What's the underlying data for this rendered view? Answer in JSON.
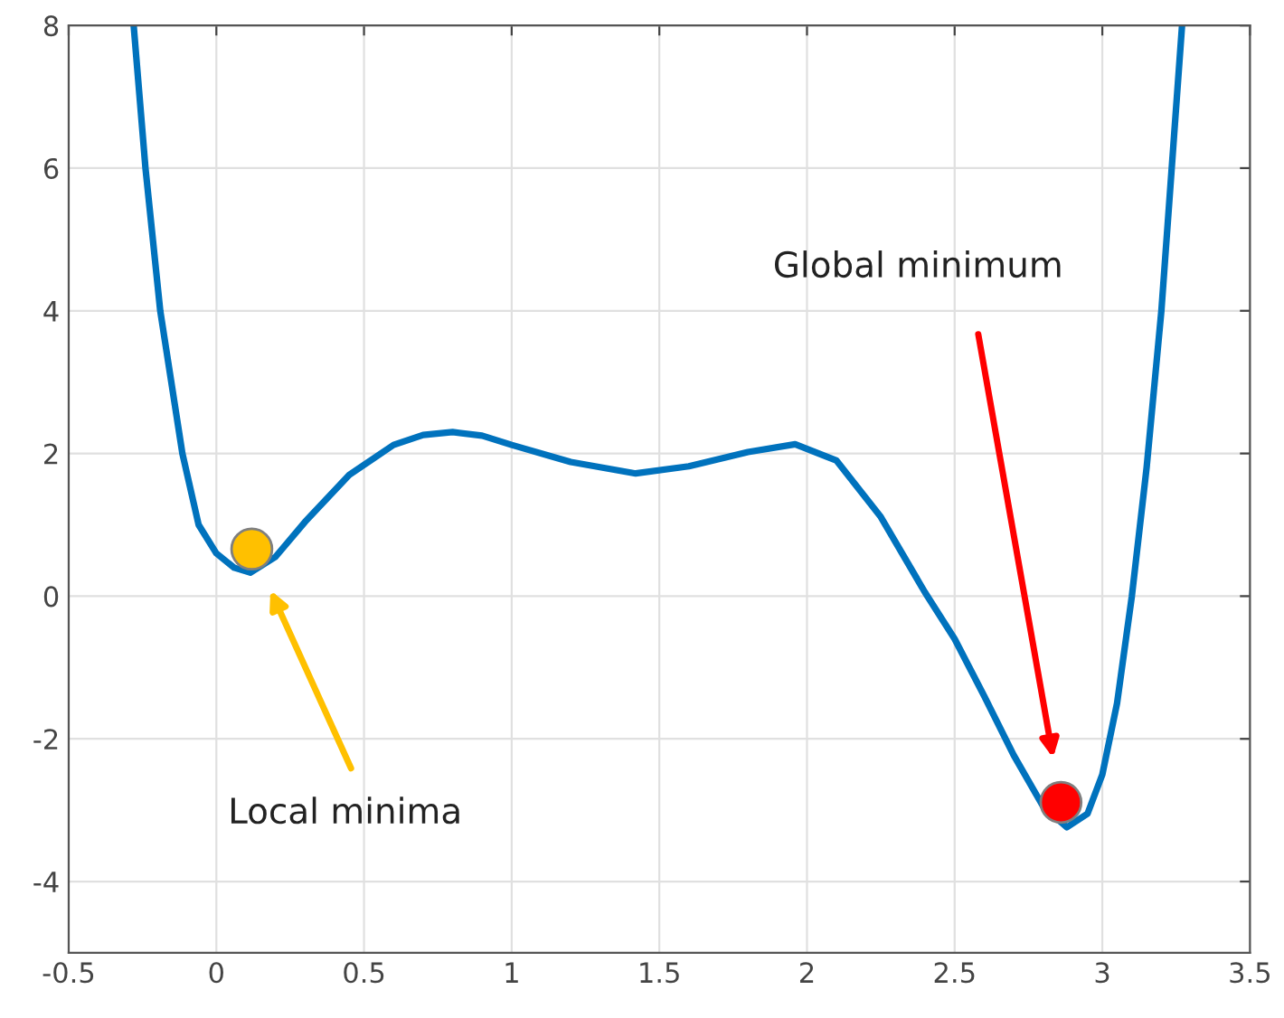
{
  "chart_data": {
    "type": "line",
    "xlim": [
      -0.5,
      3.5
    ],
    "xticks": [
      -0.5,
      0,
      0.5,
      1,
      1.5,
      2,
      2.5,
      3,
      3.5
    ],
    "ylim": [
      -5,
      8
    ],
    "yticks": [
      -4,
      -2,
      0,
      2,
      4,
      6,
      8
    ],
    "grid": true,
    "series": [
      {
        "color": "#0072bd",
        "x": [
          -0.28,
          -0.24,
          -0.19,
          -0.115,
          -0.06,
          0.0,
          0.06,
          0.115,
          0.2,
          0.3,
          0.45,
          0.6,
          0.7,
          0.8,
          0.9,
          1.0,
          1.2,
          1.42,
          1.6,
          1.8,
          1.96,
          2.1,
          2.25,
          2.4,
          2.5,
          2.6,
          2.7,
          2.8,
          2.88,
          2.95,
          3.0,
          3.05,
          3.1,
          3.15,
          3.2,
          3.27
        ],
        "values": [
          8,
          6,
          4,
          2,
          1,
          0.6,
          0.4,
          0.33,
          0.55,
          1.04,
          1.7,
          2.12,
          2.26,
          2.3,
          2.25,
          2.12,
          1.88,
          1.72,
          1.82,
          2.02,
          2.13,
          1.9,
          1.11,
          0.05,
          -0.6,
          -1.4,
          -2.23,
          -2.95,
          -3.24,
          -3.05,
          -2.5,
          -1.5,
          0,
          1.8,
          4,
          8
        ]
      },
      {
        "type": "scatter",
        "color": "#ffc000",
        "x": [
          0.12
        ],
        "values": [
          0.66
        ]
      },
      {
        "type": "scatter",
        "color": "#ff0000",
        "x": [
          2.86
        ],
        "values": [
          -2.89
        ]
      }
    ],
    "annotations": [
      "Local minima",
      "Global minimum"
    ]
  }
}
